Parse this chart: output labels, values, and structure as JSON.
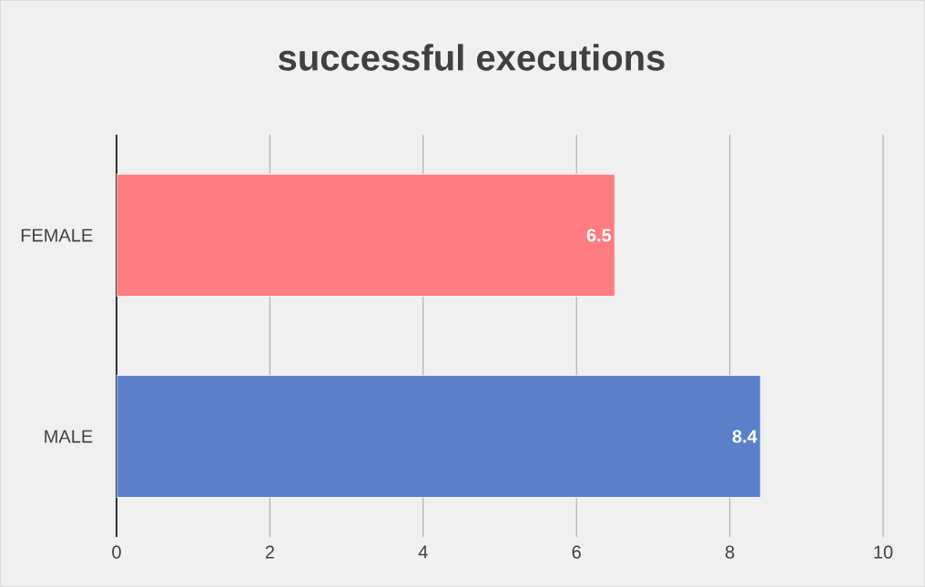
{
  "chart_data": {
    "type": "bar",
    "orientation": "horizontal",
    "title": "successful executions",
    "categories": [
      "FEMALE",
      "MALE"
    ],
    "values": [
      6.5,
      8.4
    ],
    "colors": [
      "#ff7c80",
      "#5b80c9"
    ],
    "xlim": [
      0,
      10
    ],
    "xticks": [
      0,
      2,
      4,
      6,
      8,
      10
    ],
    "grid": "x",
    "data_labels": true
  }
}
